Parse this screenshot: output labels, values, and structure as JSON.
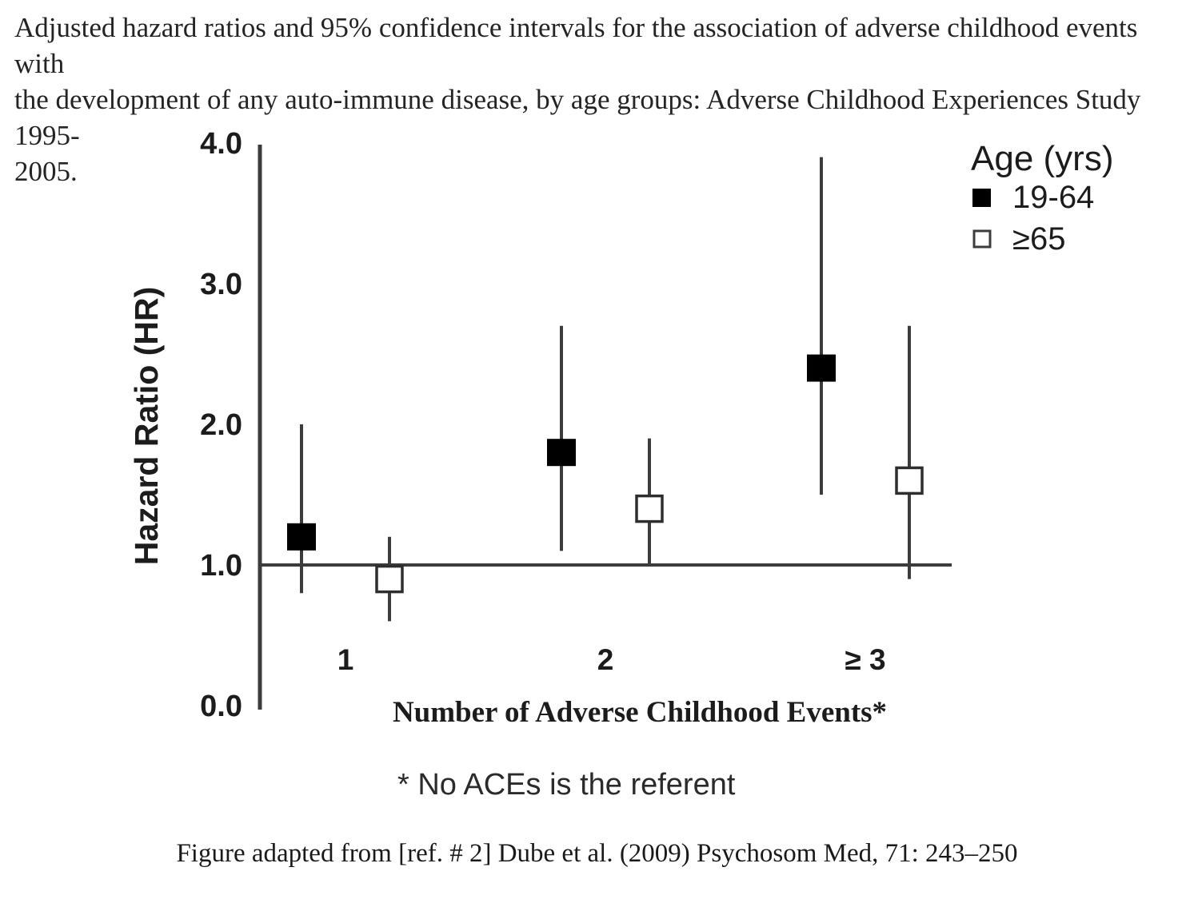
{
  "page": {
    "title_lines": [
      "Adjusted hazard ratios and 95% confidence intervals for the association of adverse childhood events with",
      "the development of any auto-immune disease, by age groups: Adverse Childhood Experiences Study 1995-",
      "2005."
    ],
    "caption": "Figure adapted from [ref. # 2] Dube et al. (2009) Psychosom Med, 71: 243–250"
  },
  "chart_data": {
    "type": "scatter",
    "variant": "forest-plot-hr-with-95ci",
    "title": "Adjusted hazard ratios and 95% confidence intervals for the association of adverse childhood events with the development of any auto-immune disease, by age groups: Adverse Childhood Experiences Study 1995-2005.",
    "xlabel": "Number of Adverse Childhood Events*",
    "ylabel": "Hazard Ratio (HR)",
    "footnote": "* No ACEs is the referent",
    "ylim": [
      0.0,
      4.0
    ],
    "ytick_values": [
      0,
      1,
      2,
      3,
      4
    ],
    "ytick_labels": [
      "0.0",
      "1.0",
      "2.0",
      "3.0",
      "4.0"
    ],
    "reference_line_y": 1.0,
    "grid": false,
    "categories": [
      "1",
      "2",
      "≥ 3"
    ],
    "legend": {
      "title": "Age (yrs)",
      "position": "top-right",
      "entries": [
        {
          "label": "19-64",
          "marker": "filled-square"
        },
        {
          "label": "≥65",
          "marker": "open-square"
        }
      ]
    },
    "series": [
      {
        "name": "19-64",
        "marker": "filled-square",
        "points": [
          {
            "category": "1",
            "hr": 1.2,
            "ci_low": 0.8,
            "ci_high": 2.0
          },
          {
            "category": "2",
            "hr": 1.8,
            "ci_low": 1.1,
            "ci_high": 2.7
          },
          {
            "category": "≥ 3",
            "hr": 2.4,
            "ci_low": 1.5,
            "ci_high": 3.9
          }
        ]
      },
      {
        "name": "≥65",
        "marker": "open-square",
        "points": [
          {
            "category": "1",
            "hr": 0.9,
            "ci_low": 0.6,
            "ci_high": 1.2
          },
          {
            "category": "2",
            "hr": 1.4,
            "ci_low": 1.0,
            "ci_high": 1.9
          },
          {
            "category": "≥ 3",
            "hr": 1.6,
            "ci_low": 0.9,
            "ci_high": 2.7
          }
        ]
      }
    ],
    "colors": {
      "marker_fill": "#000000",
      "open_marker_fill": "#ffffff",
      "line": "#3c3c3c",
      "text": "#1c1c1c",
      "background": "#ffffff"
    }
  }
}
